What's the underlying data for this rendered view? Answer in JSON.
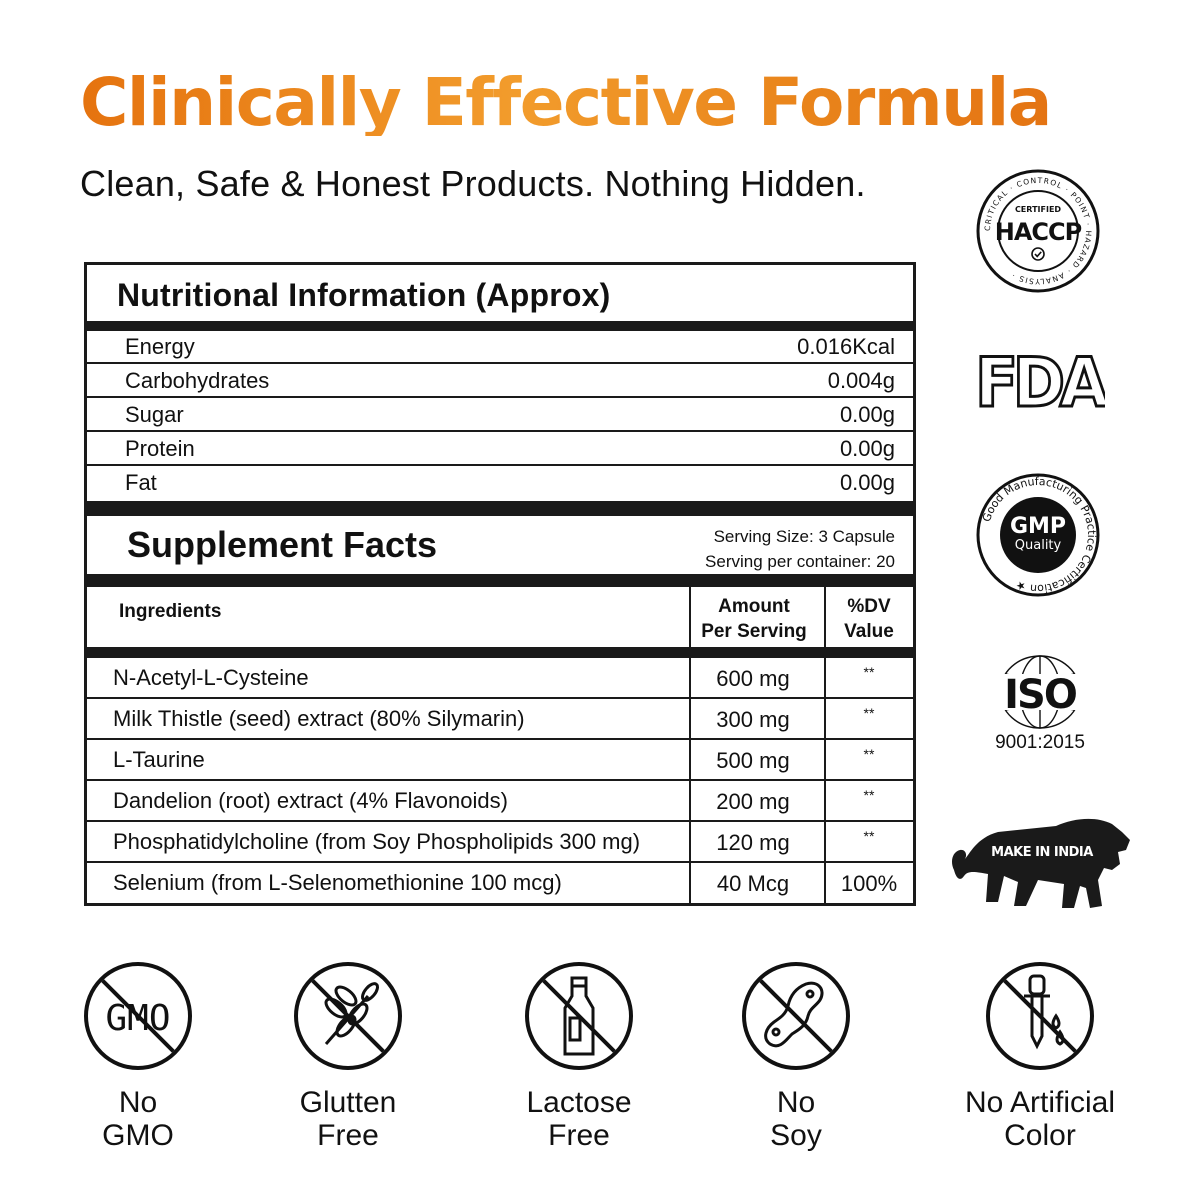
{
  "header": {
    "title": "Clinically Effective Formula",
    "subtitle": "Clean, Safe & Honest Products. Nothing Hidden."
  },
  "nutrition": {
    "title": "Nutritional Information (Approx)",
    "rows": [
      {
        "label": "Energy",
        "value": "0.016Kcal"
      },
      {
        "label": "Carbohydrates",
        "value": "0.004g"
      },
      {
        "label": "Sugar",
        "value": "0.00g"
      },
      {
        "label": "Protein",
        "value": "0.00g"
      },
      {
        "label": "Fat",
        "value": "0.00g"
      }
    ]
  },
  "supplement": {
    "title": "Supplement Facts",
    "serving_size": "Serving Size: 3 Capsule",
    "servings_per_container": "Serving per container: 20",
    "headers": {
      "ingredients": "Ingredients",
      "amount_1": "Amount",
      "amount_2": "Per Serving",
      "dv_1": "%DV",
      "dv_2": "Value"
    },
    "rows": [
      {
        "name": "N-Acetyl-L-Cysteine",
        "amount": "600 mg",
        "dv": "**"
      },
      {
        "name": "Milk Thistle (seed) extract (80% Silymarin)",
        "amount": "300 mg",
        "dv": "**"
      },
      {
        "name": "L-Taurine",
        "amount": "500 mg",
        "dv": "**"
      },
      {
        "name": "Dandelion (root) extract (4% Flavonoids)",
        "amount": "200 mg",
        "dv": "**"
      },
      {
        "name": "Phosphatidylcholine (from Soy Phospholipids 300 mg)",
        "amount": "120 mg",
        "dv": "**"
      },
      {
        "name": "Selenium (from L-Selenomethionine 100 mcg)",
        "amount": "40 Mcg",
        "dv": "100%"
      }
    ]
  },
  "certifications": {
    "haccp": {
      "top": "CERTIFIED",
      "main": "HACCP",
      "ring": "CRITICAL · CONTROL · POINT · HAZARD · ANALYSIS ·"
    },
    "fda": {
      "text": "FDA"
    },
    "gmp": {
      "main": "GMP",
      "sub": "Quality",
      "ring": "Good Manufacturing Practice Certification ★"
    },
    "iso": {
      "main": "ISO",
      "sub": "9001:2015"
    },
    "india": {
      "text": "MAKE IN INDIA"
    }
  },
  "badges": [
    {
      "icon": "gmo-icon",
      "line1": "No",
      "line2": "GMO",
      "mark": "GMO"
    },
    {
      "icon": "wheat-icon",
      "line1": "Glutten",
      "line2": "Free"
    },
    {
      "icon": "milk-bottle-icon",
      "line1": "Lactose",
      "line2": "Free"
    },
    {
      "icon": "soybean-icon",
      "line1": "No",
      "line2": "Soy"
    },
    {
      "icon": "dropper-icon",
      "line1": "No Artificial",
      "line2": "Color"
    }
  ],
  "colors": {
    "title_gradient_start": "#e5730f",
    "title_gradient_mid": "#f29c2c",
    "ink": "#1a1a1a"
  }
}
